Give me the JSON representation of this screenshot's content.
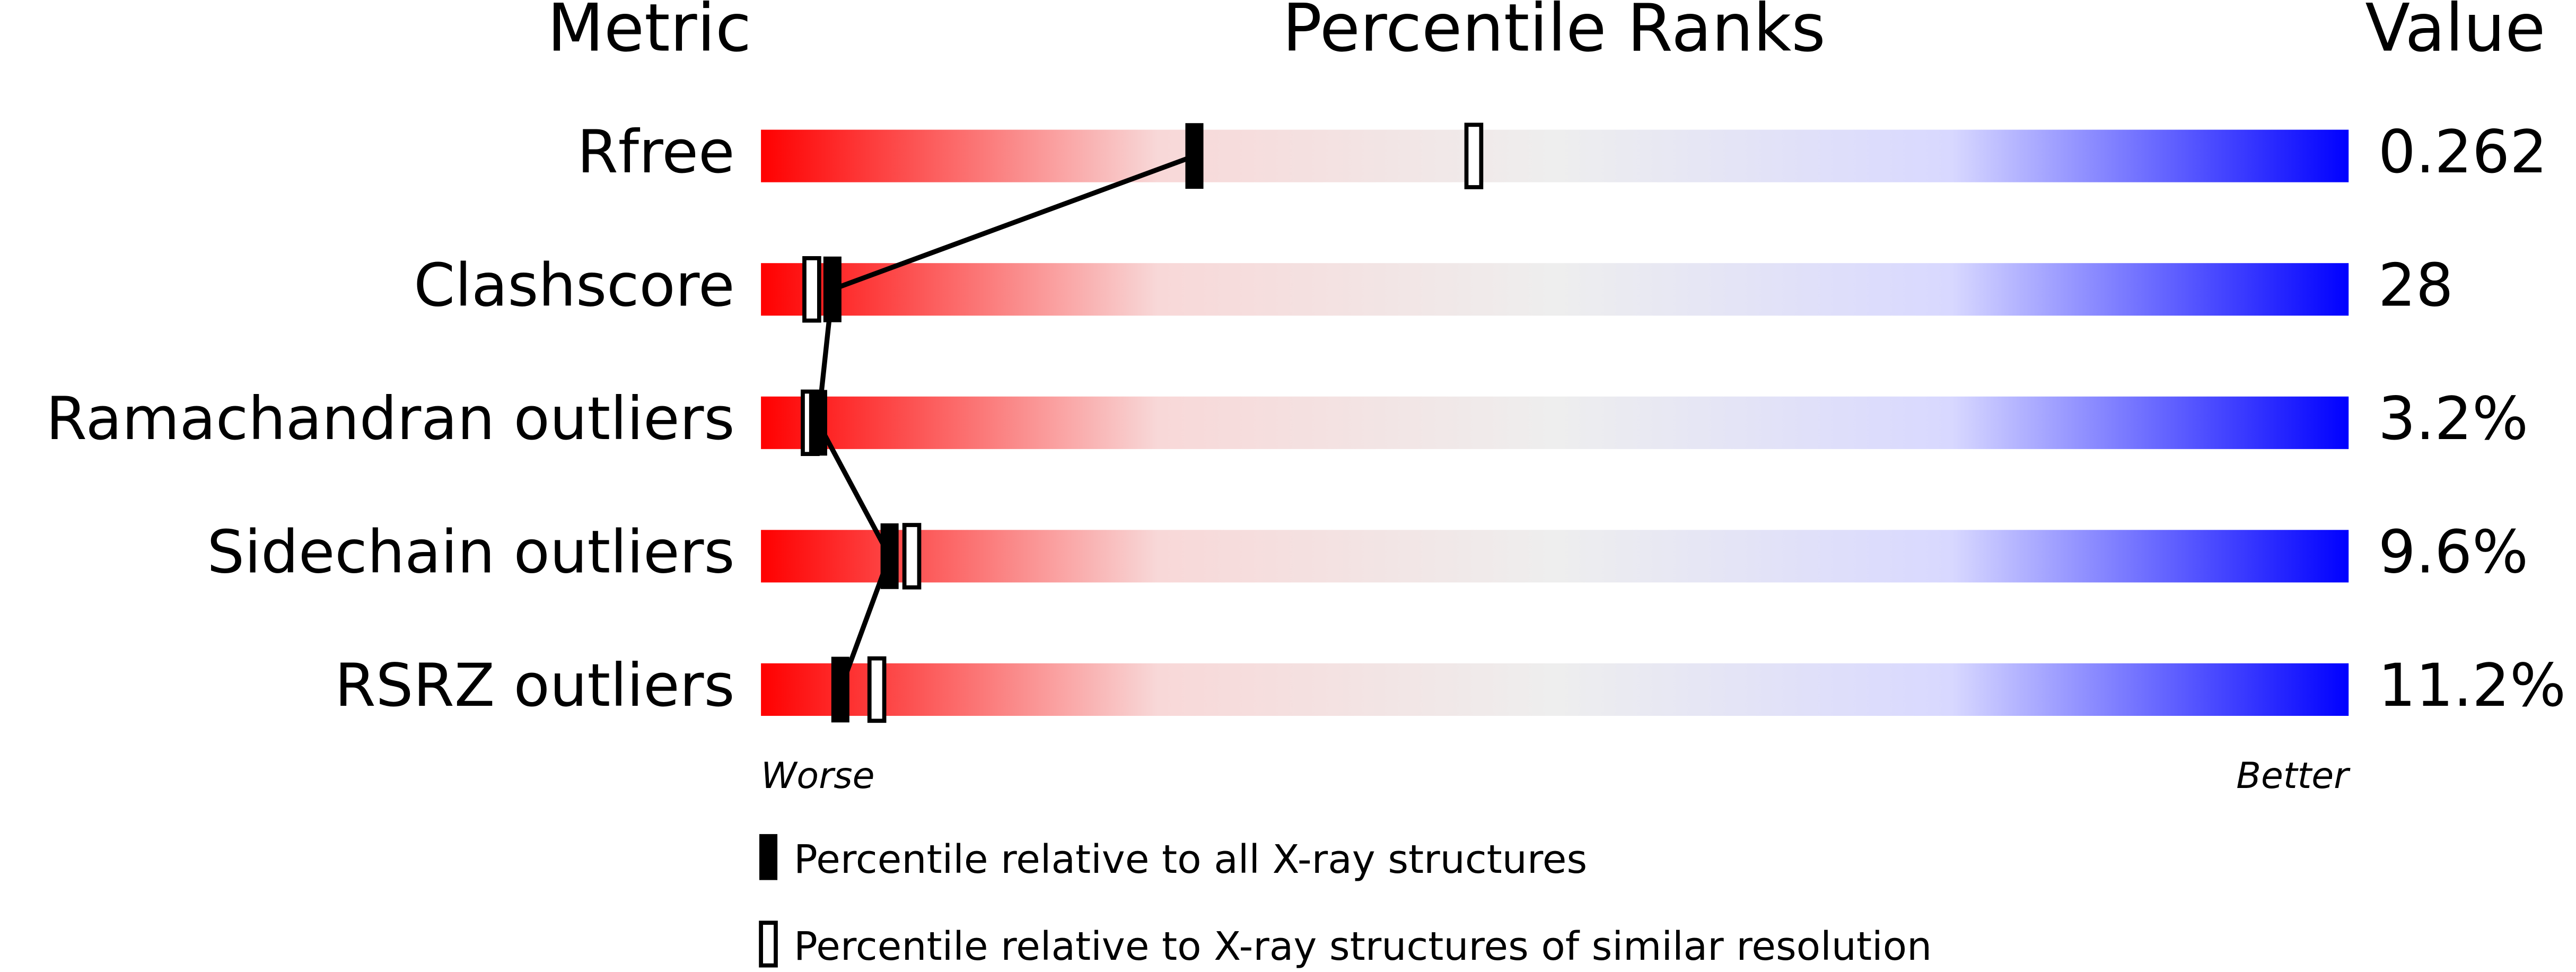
{
  "chart_data": {
    "type": "percentile-slider",
    "title": "Percentile Ranks",
    "metric_header": "Metric",
    "value_header": "Value",
    "categories": [
      "Rfree",
      "Clashscore",
      "Ramachandran outliers",
      "Sidechain outliers",
      "RSRZ outliers"
    ],
    "metric_values": [
      "0.262",
      "28",
      "3.2%",
      "9.6%",
      "11.2%"
    ],
    "series": [
      {
        "name": "Percentile relative to all X-ray structures",
        "style": "filled",
        "color": "#000000",
        "values": [
          27.3,
          4.5,
          3.6,
          8.1,
          5.0
        ]
      },
      {
        "name": "Percentile relative to X-ray structures of similar resolution",
        "style": "open",
        "color": "#000000",
        "values": [
          44.9,
          3.2,
          3.1,
          9.5,
          7.3
        ]
      }
    ],
    "xlim": [
      0,
      100
    ],
    "axis_low_label": "Worse",
    "axis_high_label": "Better",
    "gradient_colors": [
      "#ff0000",
      "#f8d8d8",
      "#eeeeee",
      "#d8d8ff",
      "#0000ff"
    ],
    "connect_series": 0
  }
}
